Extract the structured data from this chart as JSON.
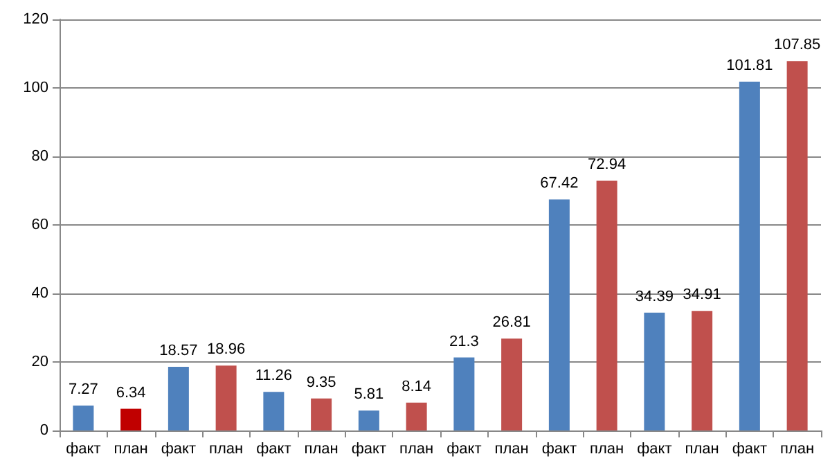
{
  "chart_data": {
    "type": "bar",
    "categories": [
      "факт",
      "план",
      "факт",
      "план",
      "факт",
      "план",
      "факт",
      "план",
      "факт",
      "план",
      "факт",
      "план",
      "факт",
      "план",
      "факт",
      "план"
    ],
    "values": [
      7.27,
      6.34,
      18.57,
      18.96,
      11.26,
      9.35,
      5.81,
      8.14,
      21.3,
      26.81,
      67.42,
      72.94,
      34.39,
      34.91,
      101.81,
      107.85
    ],
    "colors": [
      "#4f81bd",
      "#c00000",
      "#4f81bd",
      "#c0504d",
      "#4f81bd",
      "#c0504d",
      "#4f81bd",
      "#c0504d",
      "#4f81bd",
      "#c0504d",
      "#4f81bd",
      "#c0504d",
      "#4f81bd",
      "#c0504d",
      "#4f81bd",
      "#c0504d"
    ],
    "ylim": [
      0,
      120
    ],
    "yticks": [
      0,
      20,
      40,
      60,
      80,
      100,
      120
    ],
    "grid": "y",
    "data_labels": true
  }
}
